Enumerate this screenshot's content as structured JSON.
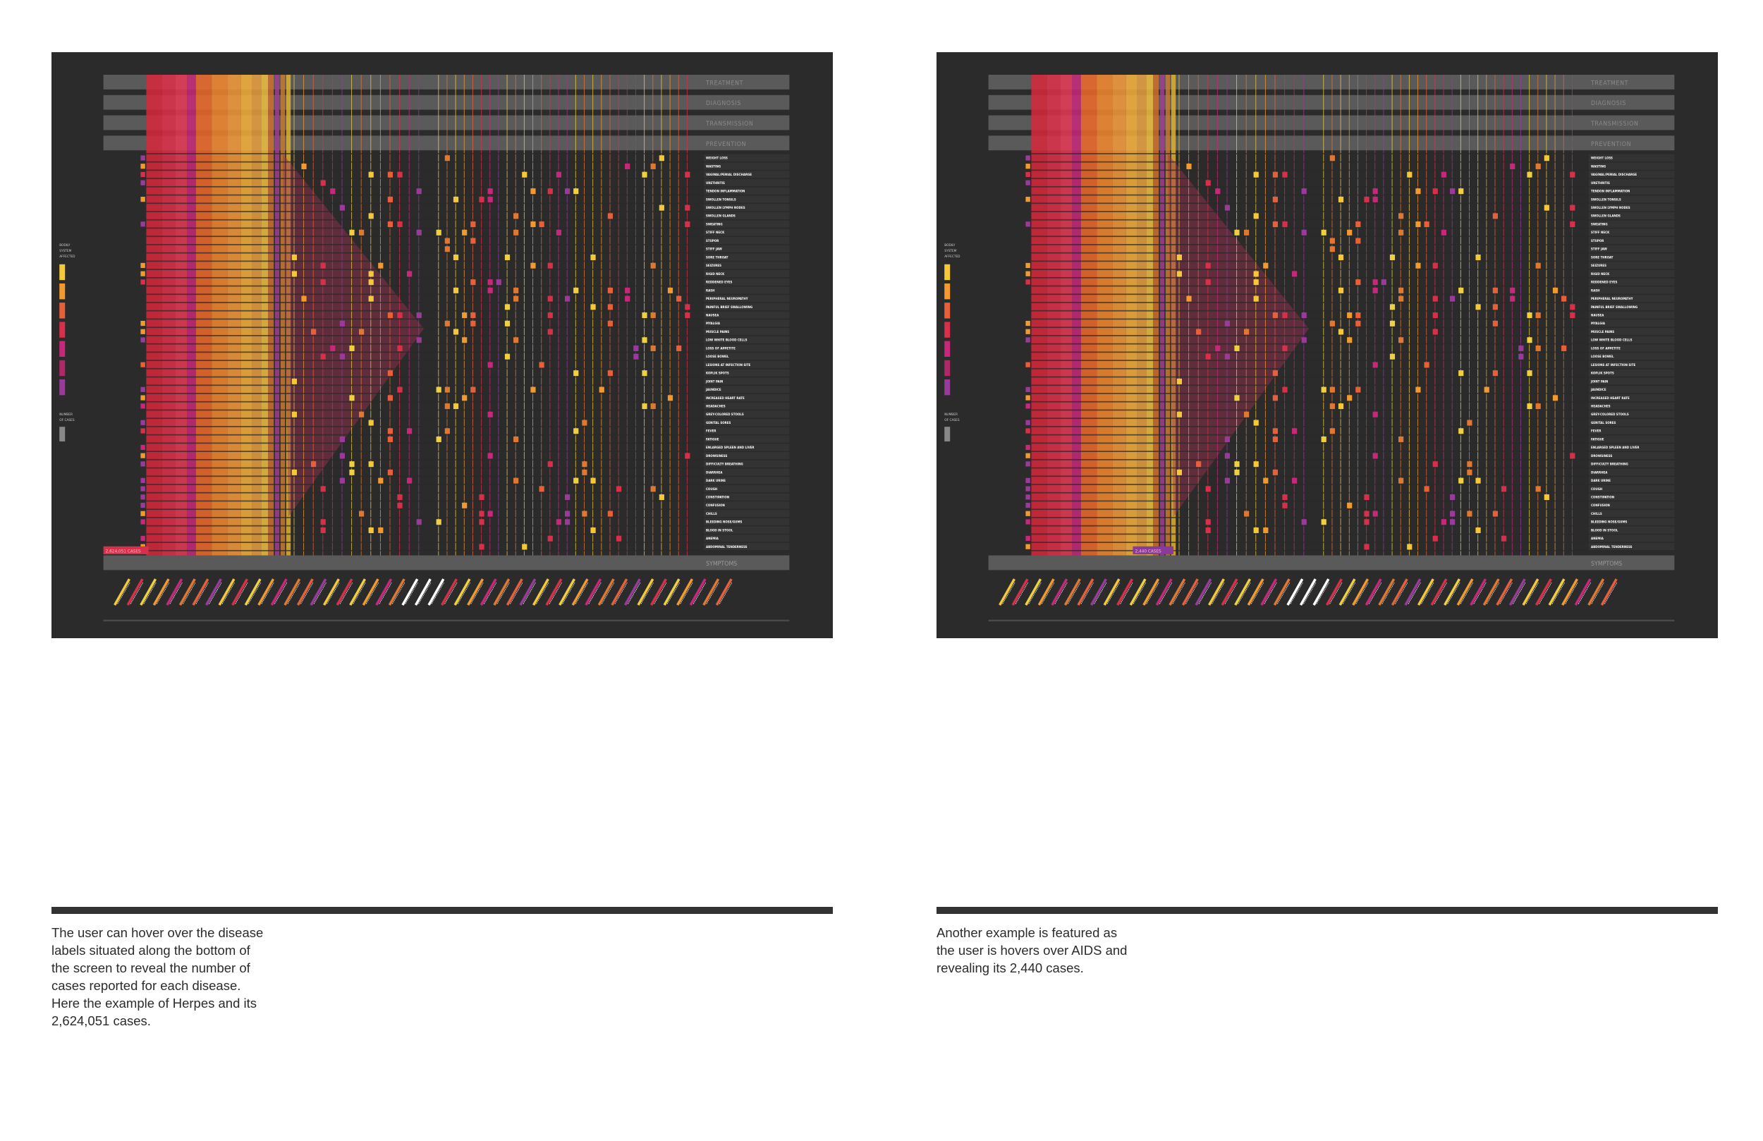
{
  "header_bars": [
    "TREATMENT",
    "DIAGNOSIS",
    "TRANSMISSION",
    "PREVENTION"
  ],
  "footer_bar": "SYMPTOMS",
  "legend": {
    "system_label": [
      "BODILY",
      "SYSTEM",
      "AFFECTED"
    ],
    "cases_label": [
      "NUMBER",
      "OF CASES"
    ]
  },
  "symptoms": [
    "WEIGHT LOSS",
    "WASTING",
    "VAGINAL/PENIAL DISCHARGE",
    "URETHRITIS",
    "TENDON INFLAMMATION",
    "SWOLLEN TONSILS",
    "SWOLLEN LYMPH NODES",
    "SWOLLEN GLANDS",
    "SWEATING",
    "STIFF NECK",
    "STUPOR",
    "STIFF JAW",
    "SORE THROAT",
    "SEIZURES",
    "RIGID NECK",
    "REDDENED EYES",
    "RASH",
    "PERIPHERAL NEUROPATHY",
    "PAINFUL BRIEF SWALLOWING",
    "NAUSEA",
    "MYALGIA",
    "MUSCLE PAINS",
    "LOW WHITE BLOOD CELLS",
    "LOSS OF APPETITE",
    "LOOSE BOWEL",
    "LESIONS AT INFECTION SITE",
    "KOPLIK SPOTS",
    "JOINT PAIN",
    "JAUNDICE",
    "INCREASED HEART RATE",
    "HEADACHES",
    "GREY-COLORED STOOLS",
    "GENITAL SORES",
    "FEVER",
    "FATIGUE",
    "ENLARGED SPLEEN AND LIVER",
    "DROWSINESS",
    "DIFFICULTY BREATHING",
    "DIARRHEA",
    "DARK URINE",
    "COUGH",
    "CONSTIPATION",
    "CONFUSION",
    "CHILLS",
    "BLEEDING NOSE/GUMS",
    "BLOOD IN STOOL",
    "ANEMIA",
    "ABDOMINAL TENDERNESS"
  ],
  "panels": [
    {
      "hover_label": "2,624,051 CASES",
      "caption": [
        "The user can hover over the disease",
        "labels situated along the bottom of",
        "the screen to reveal the number of",
        "cases reported for each disease.",
        "Here the example of Herpes and its",
        "2,624,051 cases."
      ]
    },
    {
      "hover_label": "2,440 CASES",
      "caption": [
        "Another example is featured as",
        "the user is hovers over AIDS and",
        "revealing its 2,440 cases."
      ]
    }
  ]
}
